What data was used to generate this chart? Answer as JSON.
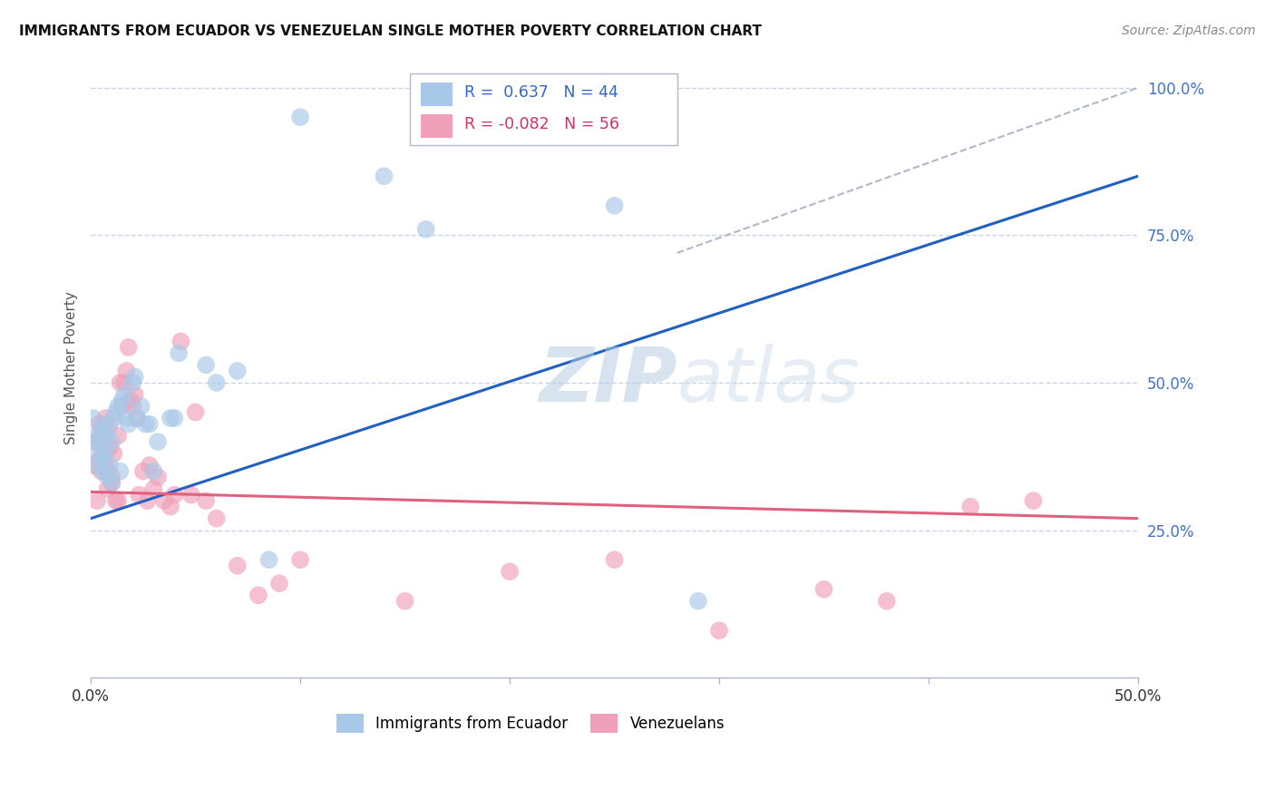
{
  "title": "IMMIGRANTS FROM ECUADOR VS VENEZUELAN SINGLE MOTHER POVERTY CORRELATION CHART",
  "source": "Source: ZipAtlas.com",
  "ylabel": "Single Mother Poverty",
  "xlim": [
    0,
    0.5
  ],
  "ylim": [
    0.0,
    1.05
  ],
  "yticks": [
    0.25,
    0.5,
    0.75,
    1.0
  ],
  "ytick_labels": [
    "25.0%",
    "50.0%",
    "75.0%",
    "100.0%"
  ],
  "ecuador_R": "0.637",
  "ecuador_N": "44",
  "venezuela_R": "-0.082",
  "venezuela_N": "56",
  "ecuador_color": "#a8c8e8",
  "venezuela_color": "#f0a0b8",
  "ecuador_line_color": "#2060c0",
  "venezuela_line_color": "#e06080",
  "ecuador_line_x": [
    0.0,
    0.5
  ],
  "ecuador_line_y": [
    0.27,
    0.85
  ],
  "venezuela_line_x": [
    0.0,
    0.5
  ],
  "venezuela_line_y": [
    0.315,
    0.27
  ],
  "dashed_line_x": [
    0.28,
    0.5
  ],
  "dashed_line_y": [
    0.72,
    1.0
  ],
  "ecuador_x": [
    0.001,
    0.002,
    0.003,
    0.003,
    0.004,
    0.005,
    0.005,
    0.006,
    0.006,
    0.007,
    0.007,
    0.008,
    0.008,
    0.009,
    0.01,
    0.01,
    0.011,
    0.012,
    0.013,
    0.014,
    0.015,
    0.016,
    0.017,
    0.018,
    0.02,
    0.021,
    0.022,
    0.024,
    0.026,
    0.028,
    0.03,
    0.032,
    0.038,
    0.04,
    0.042,
    0.055,
    0.06,
    0.07,
    0.085,
    0.1,
    0.14,
    0.16,
    0.25,
    0.29
  ],
  "ecuador_y": [
    0.44,
    0.4,
    0.36,
    0.41,
    0.38,
    0.37,
    0.42,
    0.35,
    0.4,
    0.38,
    0.43,
    0.34,
    0.42,
    0.36,
    0.33,
    0.4,
    0.44,
    0.45,
    0.46,
    0.35,
    0.47,
    0.48,
    0.44,
    0.43,
    0.5,
    0.51,
    0.44,
    0.46,
    0.43,
    0.43,
    0.35,
    0.4,
    0.44,
    0.44,
    0.55,
    0.53,
    0.5,
    0.52,
    0.2,
    0.95,
    0.85,
    0.76,
    0.8,
    0.13
  ],
  "venezuela_x": [
    0.001,
    0.002,
    0.003,
    0.004,
    0.004,
    0.005,
    0.005,
    0.006,
    0.006,
    0.007,
    0.007,
    0.008,
    0.008,
    0.009,
    0.009,
    0.01,
    0.01,
    0.011,
    0.012,
    0.013,
    0.013,
    0.014,
    0.015,
    0.016,
    0.017,
    0.018,
    0.019,
    0.02,
    0.021,
    0.022,
    0.023,
    0.025,
    0.027,
    0.028,
    0.03,
    0.032,
    0.035,
    0.038,
    0.04,
    0.043,
    0.048,
    0.05,
    0.055,
    0.06,
    0.07,
    0.08,
    0.09,
    0.1,
    0.15,
    0.2,
    0.25,
    0.3,
    0.35,
    0.38,
    0.42,
    0.45
  ],
  "venezuela_y": [
    0.36,
    0.4,
    0.3,
    0.43,
    0.37,
    0.41,
    0.35,
    0.42,
    0.38,
    0.44,
    0.36,
    0.35,
    0.32,
    0.39,
    0.43,
    0.34,
    0.33,
    0.38,
    0.3,
    0.41,
    0.3,
    0.5,
    0.46,
    0.5,
    0.52,
    0.56,
    0.47,
    0.46,
    0.48,
    0.44,
    0.31,
    0.35,
    0.3,
    0.36,
    0.32,
    0.34,
    0.3,
    0.29,
    0.31,
    0.57,
    0.31,
    0.45,
    0.3,
    0.27,
    0.19,
    0.14,
    0.16,
    0.2,
    0.13,
    0.18,
    0.2,
    0.08,
    0.15,
    0.13,
    0.29,
    0.3
  ],
  "watermark_zip": "ZIP",
  "watermark_atlas": "atlas",
  "background_color": "#ffffff",
  "grid_color": "#c8d4e8",
  "legend_ecuador_label": "Immigrants from Ecuador",
  "legend_venezuela_label": "Venezuelans"
}
